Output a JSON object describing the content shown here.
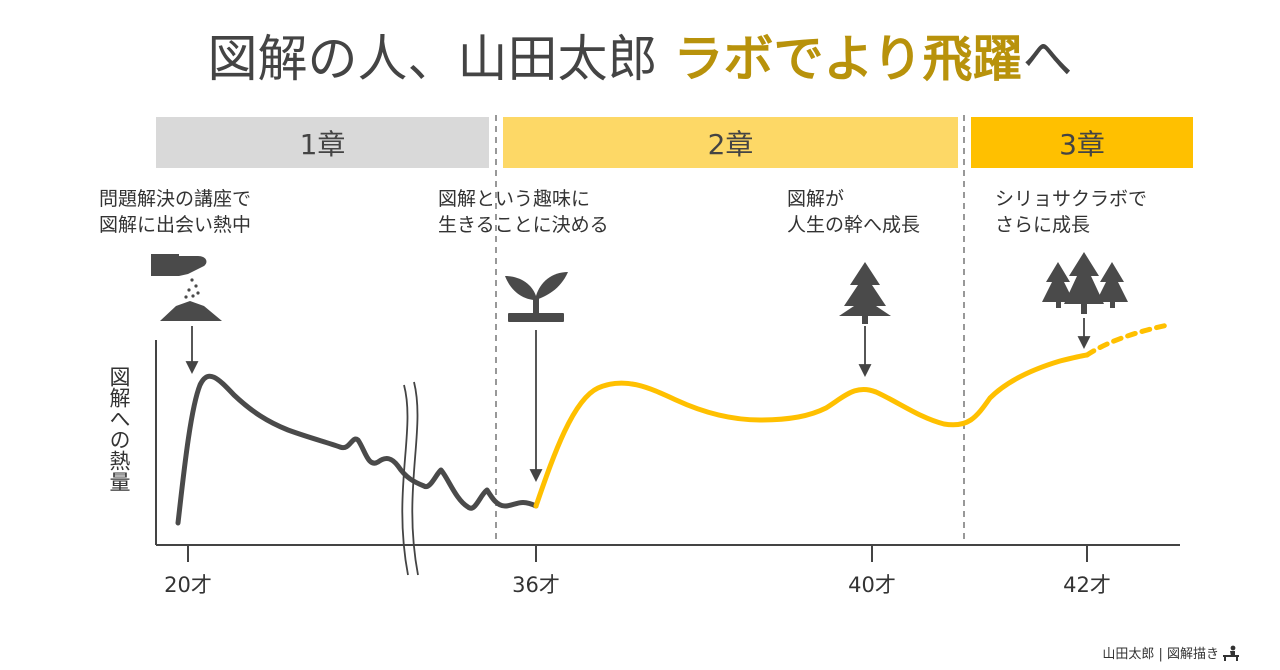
{
  "title": {
    "main": "図解の人、山田太郎",
    "accent": "ラボでより飛躍",
    "tail": "へ"
  },
  "chapters": [
    {
      "label": "1章",
      "color": "#D9D9D9"
    },
    {
      "label": "2章",
      "color": "#FDD866"
    },
    {
      "label": "3章",
      "color": "#FFC000"
    }
  ],
  "notes": [
    {
      "line1": "問題解決の講座で",
      "line2": "図解に出会い熱中"
    },
    {
      "line1": "図解という趣味に",
      "line2": "生きることに決める"
    },
    {
      "line1": "図解が",
      "line2": "人生の幹へ成長"
    },
    {
      "line1": "シリョサクラボで",
      "line2": "さらに成長"
    }
  ],
  "axis": {
    "ylabel": "図解への熱量",
    "ticks": [
      "20才",
      "36才",
      "40才",
      "42才"
    ]
  },
  "icons": [
    "hand-sowing-seeds-icon",
    "sprout-icon",
    "tree-icon",
    "forest-icon"
  ],
  "colors": {
    "gray_curve": "#4A4A4A",
    "gold_curve": "#FFC000",
    "accent_text": "#B8920B"
  },
  "credit": "山田太郎 | 図解描き"
}
